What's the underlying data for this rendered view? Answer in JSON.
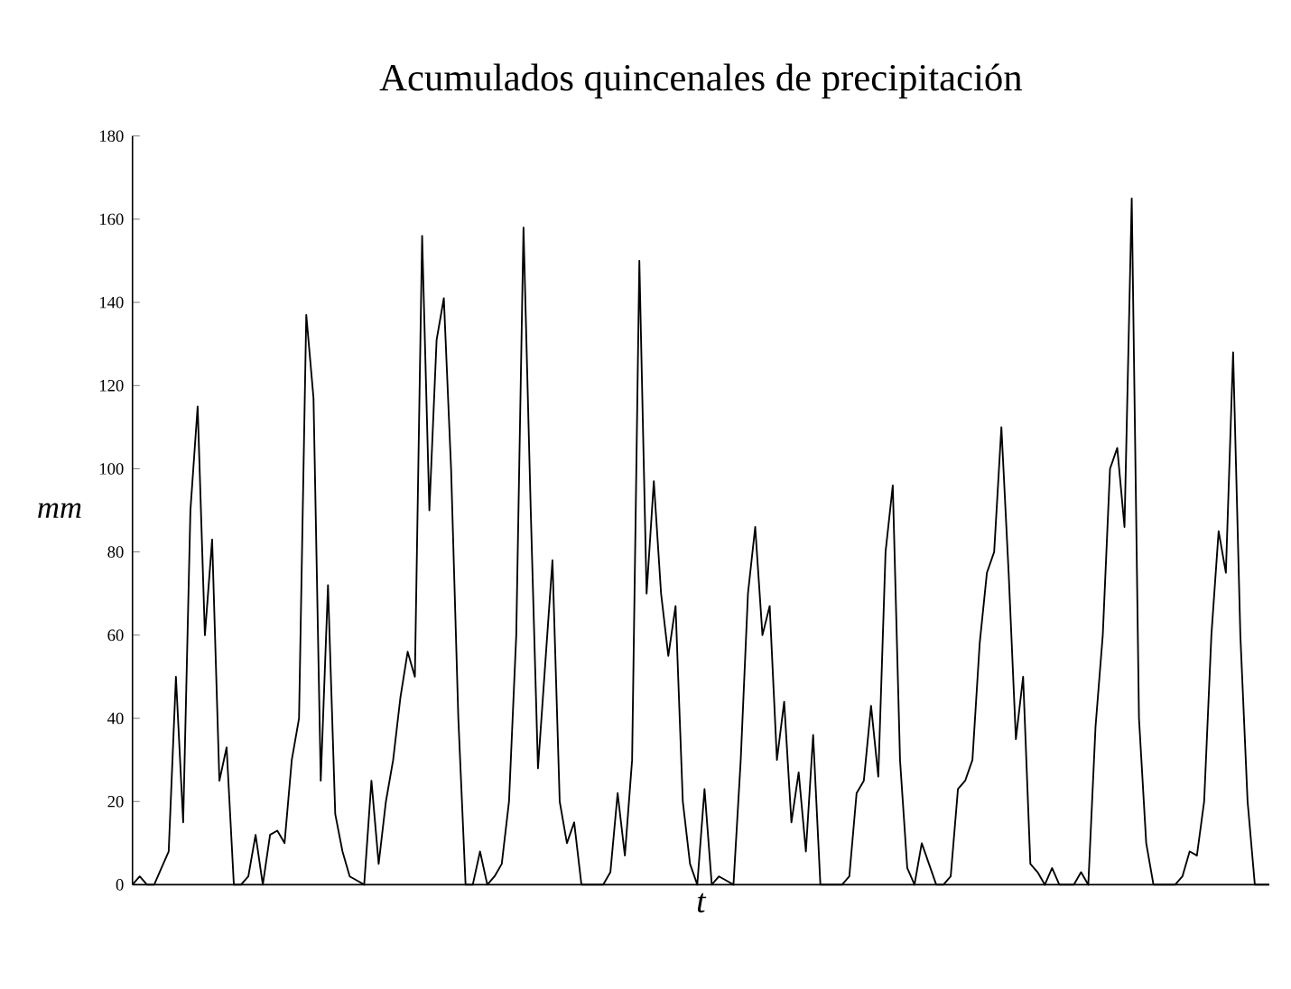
{
  "chart_data": {
    "type": "line",
    "title": "Acumulados quincenales de precipitación",
    "xlabel": "t",
    "ylabel": "mm",
    "categories": [
      null,
      null,
      null,
      null,
      null,
      null,
      null,
      null,
      null,
      null,
      null,
      null,
      null,
      null,
      null,
      null,
      null,
      null,
      null,
      null,
      null,
      null,
      null,
      null,
      null,
      null,
      null,
      null,
      null,
      null,
      null,
      null,
      null,
      null,
      null,
      null,
      null,
      null,
      null,
      null,
      null,
      null,
      null,
      null,
      null,
      null,
      null,
      null,
      null,
      null,
      null,
      null,
      null,
      null,
      null,
      null,
      null,
      null,
      null,
      null,
      null,
      null,
      null,
      null,
      null,
      null,
      null,
      null,
      null,
      null,
      null,
      null,
      null,
      null,
      null,
      null,
      null,
      null,
      null,
      null,
      null,
      null,
      null,
      null,
      null,
      null,
      null,
      null,
      null,
      null,
      null,
      null,
      null,
      null,
      null,
      null,
      null,
      null,
      null,
      null,
      null,
      null,
      null,
      null,
      null,
      null,
      null,
      null,
      null,
      null,
      null,
      null,
      null,
      null,
      null,
      null,
      null,
      null,
      null,
      null,
      null,
      null,
      null,
      null,
      null,
      null,
      null,
      null,
      null,
      null,
      null,
      null,
      null,
      null,
      null,
      null,
      null,
      null,
      null,
      null,
      null,
      null,
      null,
      null,
      null,
      null,
      null,
      null,
      null,
      null,
      null,
      null,
      null,
      null,
      null,
      null,
      null,
      null
    ],
    "values": [
      0,
      2,
      0,
      0,
      4,
      8,
      50,
      15,
      90,
      115,
      60,
      83,
      25,
      33,
      0,
      0,
      2,
      12,
      0,
      12,
      13,
      10,
      30,
      40,
      137,
      117,
      25,
      72,
      17,
      8,
      2,
      1,
      0,
      25,
      5,
      20,
      30,
      45,
      56,
      50,
      156,
      90,
      131,
      141,
      100,
      40,
      0,
      0,
      8,
      0,
      2,
      5,
      20,
      60,
      158,
      90,
      28,
      53,
      78,
      20,
      10,
      15,
      0,
      0,
      0,
      0,
      3,
      22,
      7,
      30,
      150,
      70,
      97,
      70,
      55,
      67,
      20,
      5,
      0,
      23,
      0,
      2,
      1,
      0,
      30,
      70,
      86,
      60,
      67,
      30,
      44,
      15,
      27,
      8,
      36,
      0,
      0,
      0,
      0,
      2,
      22,
      25,
      43,
      26,
      80,
      96,
      30,
      4,
      0,
      10,
      5,
      0,
      0,
      2,
      23,
      25,
      30,
      58,
      75,
      80,
      110,
      75,
      35,
      50,
      5,
      3,
      0,
      4,
      0,
      0,
      0,
      3,
      0,
      38,
      60,
      100,
      105,
      86,
      165,
      40,
      10,
      0,
      0,
      0,
      0,
      2,
      8,
      7,
      20,
      60,
      85,
      75,
      128,
      60,
      20,
      0,
      0,
      0
    ],
    "color": "#000000",
    "ylim": [
      0,
      180
    ],
    "yticks": [
      0,
      20,
      40,
      60,
      80,
      100,
      120,
      140,
      160,
      180
    ],
    "tick_labels": "y",
    "grid": false,
    "marker": "none",
    "line_style": "solid"
  }
}
